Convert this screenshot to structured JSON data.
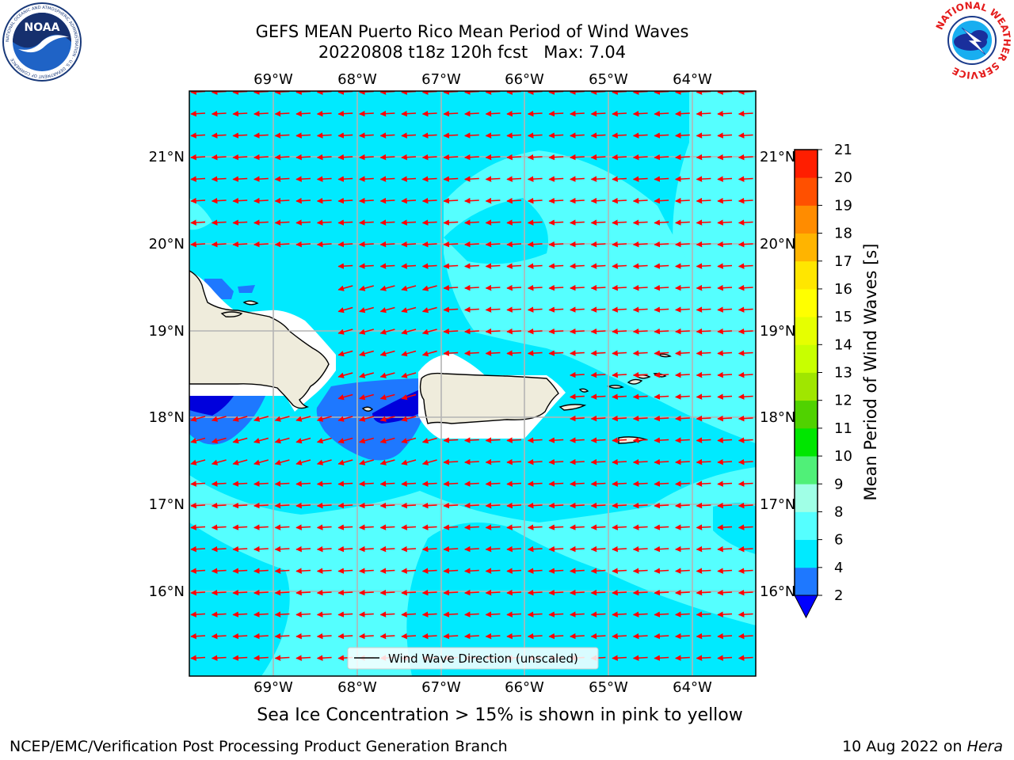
{
  "title": {
    "line1": "GEFS MEAN Puerto Rico Mean Period of Wind Waves",
    "line2": "20220808 t18z 120h fcst   Max: 7.04"
  },
  "logos": {
    "noaa": {
      "icon": "noaa-logo",
      "text": "NOAA",
      "ring_text": "NATIONAL OCEANIC AND ATMOSPHERIC ADMINISTRATION · U.S. DEPARTMENT OF COMMERCE"
    },
    "nws": {
      "icon": "nws-logo",
      "ring_text": "NATIONAL WEATHER SERVICE"
    }
  },
  "map": {
    "lon_labels": [
      "69°W",
      "68°W",
      "67°W",
      "66°W",
      "65°W",
      "64°W"
    ],
    "lat_labels": [
      "21°N",
      "20°N",
      "19°N",
      "18°N",
      "17°N",
      "16°N"
    ],
    "legend": "Wind Wave Direction (unscaled)",
    "colors": {
      "ocean_4_6": "#00eaff",
      "ocean_6_8": "#55ffff",
      "low_2_4": "#1e78ff",
      "lowest": "#0000dc",
      "land": "#efecdc",
      "arrow": "#ff0000",
      "grid": "#b4b4b4"
    }
  },
  "colorbar": {
    "label": "Mean Period of Wind Waves [s]",
    "ticks": [
      "2",
      "4",
      "6",
      "8",
      "9",
      "10",
      "11",
      "12",
      "13",
      "14",
      "15",
      "16",
      "17",
      "18",
      "19",
      "20",
      "21"
    ],
    "colors": [
      "#1e78ff",
      "#00eaff",
      "#55ffff",
      "#a0ffe6",
      "#50f078",
      "#00e600",
      "#50d200",
      "#a0e600",
      "#c8ff00",
      "#e6ff00",
      "#ffff00",
      "#ffe600",
      "#ffb400",
      "#ff8c00",
      "#ff5000",
      "#ff1e00"
    ],
    "under_color": "#0000ff"
  },
  "note": "Sea Ice Concentration > 15% is shown in pink to yellow",
  "footer": {
    "left": "NCEP/EMC/Verification Post Processing Product Generation Branch",
    "date": "10 Aug 2022 on ",
    "host": "Hera"
  }
}
